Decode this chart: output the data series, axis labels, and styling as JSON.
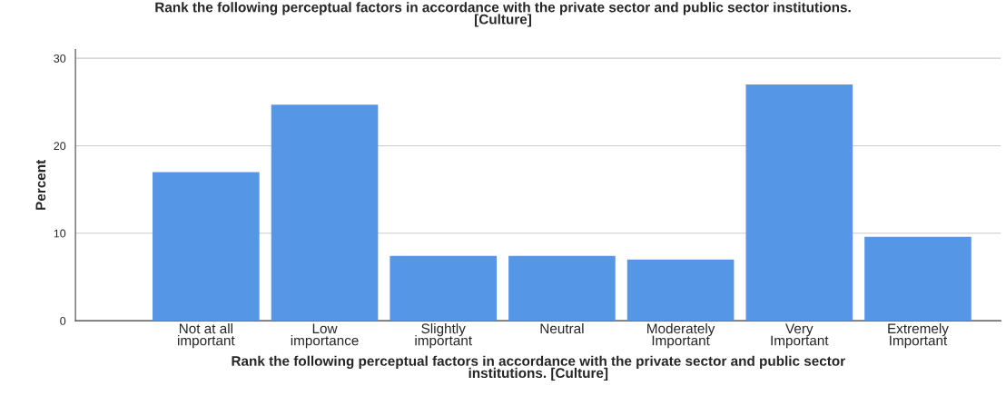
{
  "chart_data": {
    "type": "bar",
    "title": "Rank the following perceptual factors in accordance with the private sector and public sector institutions.\n[Culture]",
    "xlabel": "Rank the following perceptual factors in accordance with the private sector and public sector\ninstitutions. [Culture]",
    "ylabel": "Percent",
    "categories": [
      "Not at all\nimportant",
      "Low\nimportance",
      "Slightly\nimportant",
      "Neutral",
      "Moderately\nImportant",
      "Very\nImportant",
      "Extremely\nImportant"
    ],
    "values": [
      17.0,
      24.7,
      7.4,
      7.4,
      7.0,
      27.0,
      9.6
    ],
    "color": "#5596e6",
    "ylim": [
      0,
      31
    ],
    "yticks": [
      0,
      10,
      20,
      30
    ],
    "grid": "y"
  }
}
